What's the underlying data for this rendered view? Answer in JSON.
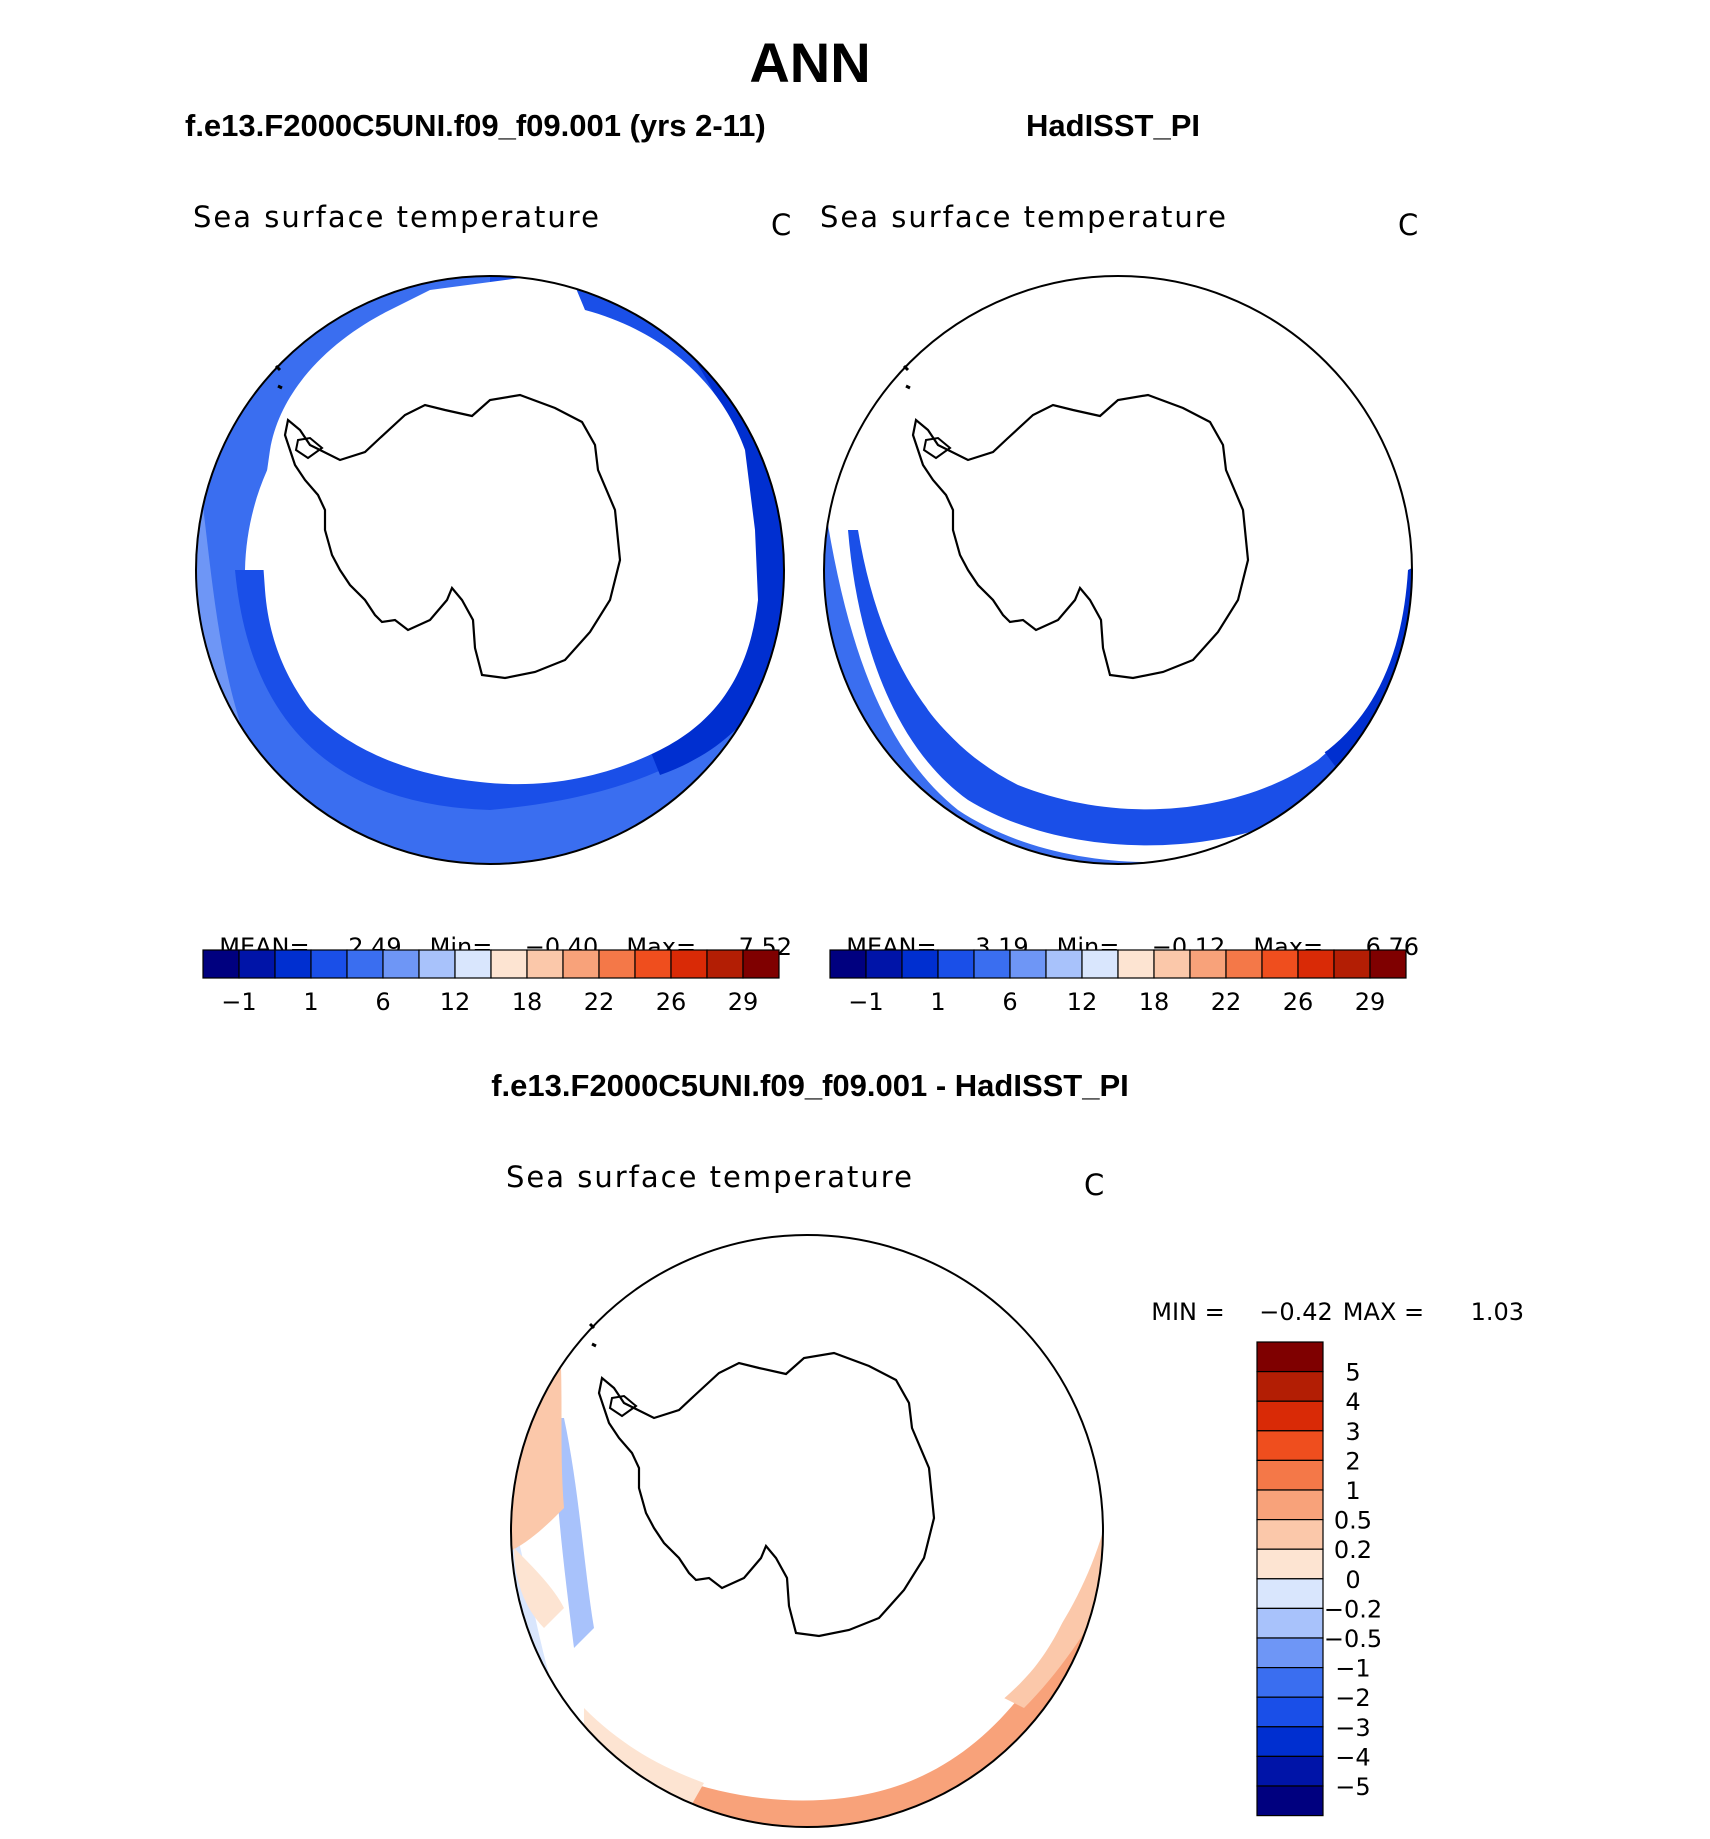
{
  "main_title": "ANN",
  "panel_left": {
    "case_title": "f.e13.F2000C5UNI.f09_f09.001 (yrs 2-11)",
    "variable": "Sea surface temperature",
    "unit": "C",
    "stats": {
      "mean_label": "MEAN=",
      "mean": "2.49",
      "min_label": "Min=",
      "min": "−0.40",
      "max_label": "Max=",
      "max": "7.52"
    }
  },
  "panel_right": {
    "case_title": "HadISST_PI",
    "variable": "Sea surface temperature",
    "unit": "C",
    "stats": {
      "mean_label": "MEAN=",
      "mean": "3.19",
      "min_label": "Min=",
      "min": "−0.12",
      "max_label": "Max=",
      "max": "6.76"
    }
  },
  "panel_diff": {
    "title": "f.e13.F2000C5UNI.f09_f09.001 - HadISST_PI",
    "variable": "Sea surface temperature",
    "unit": "C",
    "stats": {
      "min_label": "MIN =",
      "min": "−0.42",
      "max_label": "MAX =",
      "max": "1.03"
    }
  },
  "colorbar_main": {
    "tick_labels": [
      "−1",
      "1",
      "6",
      "12",
      "18",
      "22",
      "26",
      "29"
    ],
    "colors": [
      "#00007f",
      "#0014a8",
      "#002fd0",
      "#1a4fe8",
      "#3a6ef0",
      "#6e96f6",
      "#a8c2fb",
      "#d9e6fd",
      "#fde4d2",
      "#fbc8aa",
      "#f8a27a",
      "#f47848",
      "#ef4e1e",
      "#d92a06",
      "#b31e04",
      "#7f0000"
    ]
  },
  "colorbar_diff": {
    "tick_labels": [
      "5",
      "4",
      "3",
      "2",
      "1",
      "0.5",
      "0.2",
      "0",
      "−0.2",
      "−0.5",
      "−1",
      "−2",
      "−3",
      "−4",
      "−5"
    ],
    "colors": [
      "#7f0000",
      "#b31e04",
      "#d92a06",
      "#ef4e1e",
      "#f47848",
      "#f8a27a",
      "#fbc8aa",
      "#fde4d2",
      "#d9e6fd",
      "#a8c2fb",
      "#6e96f6",
      "#3a6ef0",
      "#1a4fe8",
      "#002fd0",
      "#0014a8",
      "#00007f"
    ]
  }
}
